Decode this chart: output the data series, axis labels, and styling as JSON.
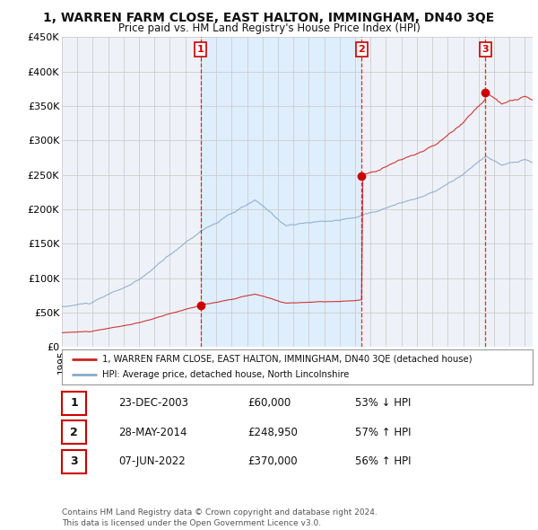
{
  "title": "1, WARREN FARM CLOSE, EAST HALTON, IMMINGHAM, DN40 3QE",
  "subtitle": "Price paid vs. HM Land Registry's House Price Index (HPI)",
  "ylabel_ticks": [
    "£0",
    "£50K",
    "£100K",
    "£150K",
    "£200K",
    "£250K",
    "£300K",
    "£350K",
    "£400K",
    "£450K"
  ],
  "ytick_values": [
    0,
    50000,
    100000,
    150000,
    200000,
    250000,
    300000,
    350000,
    400000,
    450000
  ],
  "ylim": [
    0,
    450000
  ],
  "background_color": "#ffffff",
  "grid_color": "#cccccc",
  "plot_bg_color": "#eef2f8",
  "shaded_region_color": "#ddeeff",
  "line_color_price": "#cc2222",
  "line_color_hpi": "#88aacc",
  "sale_color": "#cc0000",
  "vline_color": "#cc0000",
  "transactions": [
    {
      "date": 2003.98,
      "price": 60000,
      "label": "1"
    },
    {
      "date": 2014.42,
      "price": 248950,
      "label": "2"
    },
    {
      "date": 2022.44,
      "price": 370000,
      "label": "3"
    }
  ],
  "table_rows": [
    {
      "num": "1",
      "date": "23-DEC-2003",
      "price": "£60,000",
      "change": "53% ↓ HPI"
    },
    {
      "num": "2",
      "date": "28-MAY-2014",
      "price": "£248,950",
      "change": "57% ↑ HPI"
    },
    {
      "num": "3",
      "date": "07-JUN-2022",
      "price": "£370,000",
      "change": "56% ↑ HPI"
    }
  ],
  "legend_price_label": "1, WARREN FARM CLOSE, EAST HALTON, IMMINGHAM, DN40 3QE (detached house)",
  "legend_hpi_label": "HPI: Average price, detached house, North Lincolnshire",
  "footer_text": "Contains HM Land Registry data © Crown copyright and database right 2024.\nThis data is licensed under the Open Government Licence v3.0.",
  "xmin": 1995.0,
  "xmax": 2025.5
}
